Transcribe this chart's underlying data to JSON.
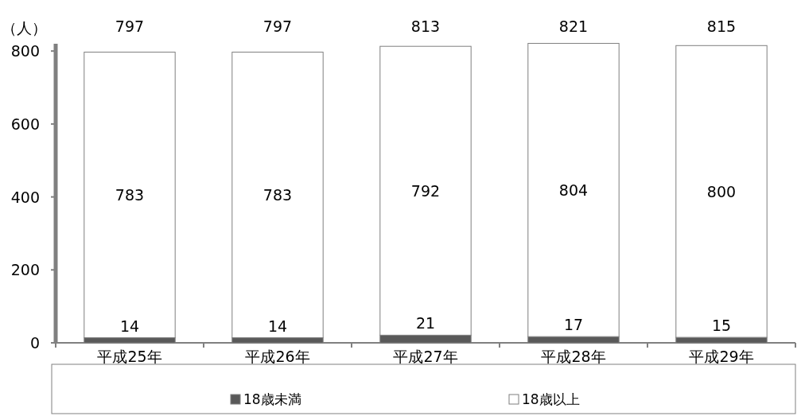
{
  "chart_data": {
    "type": "bar",
    "stacked": true,
    "ylabel": "（人）",
    "categories": [
      "平成25年",
      "平成26年",
      "平成27年",
      "平成28年",
      "平成29年"
    ],
    "series": [
      {
        "name": "18歳未満",
        "color": "#595959",
        "values": [
          14,
          14,
          21,
          17,
          15
        ]
      },
      {
        "name": "18歳以上",
        "color": "#ffffff",
        "values": [
          783,
          783,
          792,
          804,
          800
        ]
      }
    ],
    "totals": [
      "797",
      "797",
      "813",
      "821",
      "815"
    ],
    "data_labels": true,
    "ylim": [
      0,
      820
    ],
    "yticks": [
      0,
      200,
      400,
      600,
      800
    ],
    "legend": "bottom",
    "grid": false
  }
}
